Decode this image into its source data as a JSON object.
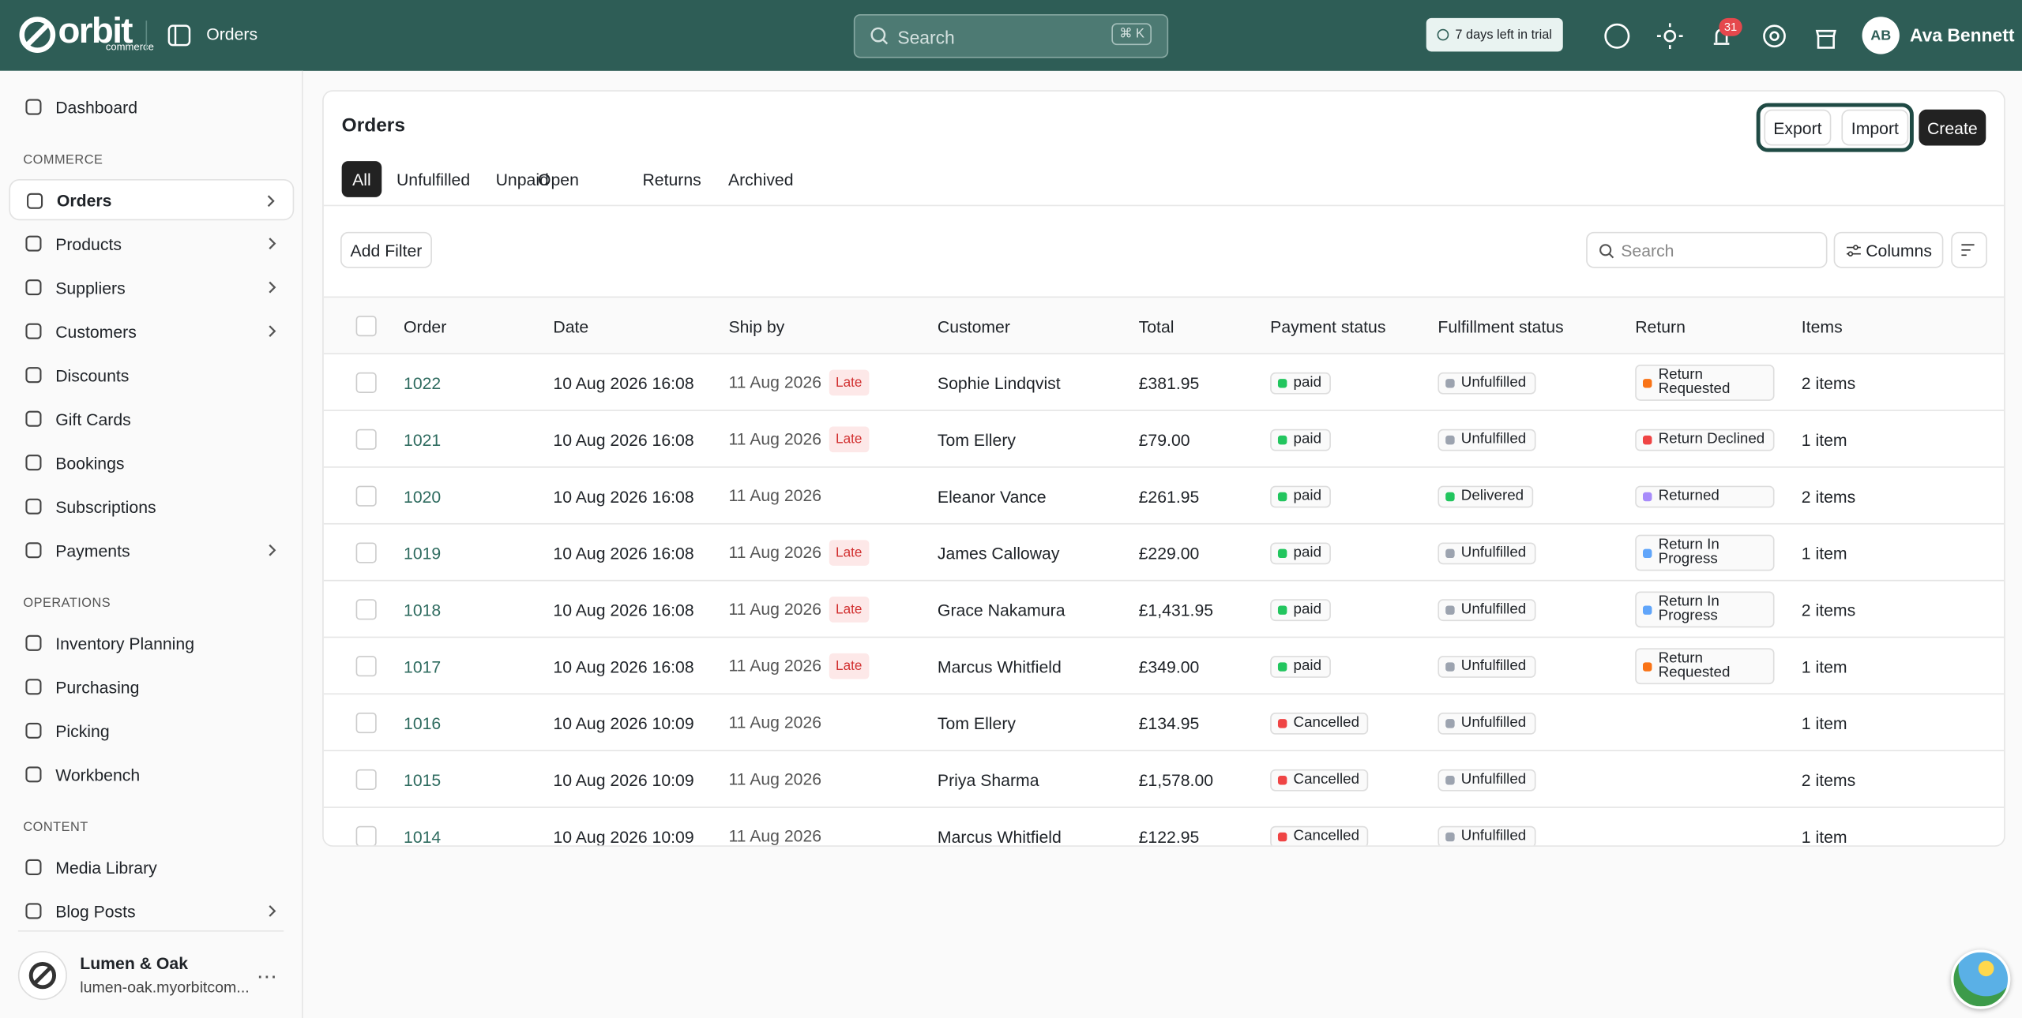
{
  "topbar": {
    "brand": "orbit",
    "brand_sub": "commerce",
    "section": "Orders",
    "search_placeholder": "Search",
    "shortcut": "⌘ K",
    "trial": "7 days left in trial",
    "notifications": "31",
    "user_initials": "AB",
    "user_name": "Ava Bennett"
  },
  "sidebar": {
    "groups": [
      {
        "items": [
          {
            "label": "Dashboard"
          }
        ]
      },
      {
        "title": "COMMERCE",
        "items": [
          {
            "label": "Orders",
            "chevron": true,
            "active": true
          },
          {
            "label": "Products",
            "chevron": true
          },
          {
            "label": "Suppliers",
            "chevron": true
          },
          {
            "label": "Customers",
            "chevron": true
          },
          {
            "label": "Discounts"
          },
          {
            "label": "Gift Cards"
          },
          {
            "label": "Bookings"
          },
          {
            "label": "Subscriptions"
          },
          {
            "label": "Payments",
            "chevron": true
          }
        ]
      },
      {
        "title": "OPERATIONS",
        "items": [
          {
            "label": "Inventory Planning"
          },
          {
            "label": "Purchasing"
          },
          {
            "label": "Picking"
          },
          {
            "label": "Workbench"
          }
        ]
      },
      {
        "title": "CONTENT",
        "items": [
          {
            "label": "Media Library"
          },
          {
            "label": "Blog Posts",
            "chevron": true
          }
        ]
      }
    ],
    "store": {
      "name": "Lumen & Oak",
      "domain": "lumen-oak.myorbitcom..."
    }
  },
  "page": {
    "title": "Orders",
    "actions": [
      "Export",
      "Import",
      "Create"
    ],
    "tabs": [
      "All",
      "Unfulfilled",
      "Unpaid",
      "Open",
      "Returns",
      "Archived"
    ],
    "add_filter": "Add Filter",
    "search_placeholder": "Search",
    "columns_button": "Columns"
  },
  "table": {
    "columns": [
      "Order",
      "Date",
      "Ship by",
      "Customer",
      "Total",
      "Payment status",
      "Fulfillment status",
      "Return",
      "Items"
    ],
    "rows": [
      {
        "order": "1022",
        "date": "10 Aug 2026 16:08",
        "ship_by": "11 Aug 2026",
        "late": "Late",
        "customer": "Sophie Lindqvist",
        "total": "£381.95",
        "payment": {
          "label": "paid",
          "color": "#22c55e"
        },
        "fulfillment": {
          "label": "Unfulfilled",
          "color": "#9ca3af"
        },
        "return": {
          "label": "Return Requested",
          "color": "#f97316"
        },
        "items": "2 items"
      },
      {
        "order": "1021",
        "date": "10 Aug 2026 16:08",
        "ship_by": "11 Aug 2026",
        "late": "Late",
        "customer": "Tom Ellery",
        "total": "£79.00",
        "payment": {
          "label": "paid",
          "color": "#22c55e"
        },
        "fulfillment": {
          "label": "Unfulfilled",
          "color": "#9ca3af"
        },
        "return": {
          "label": "Return Declined",
          "color": "#ef4444"
        },
        "items": "1 item"
      },
      {
        "order": "1020",
        "date": "10 Aug 2026 16:08",
        "ship_by": "11 Aug 2026",
        "customer": "Eleanor Vance",
        "total": "£261.95",
        "payment": {
          "label": "paid",
          "color": "#22c55e"
        },
        "fulfillment": {
          "label": "Delivered",
          "color": "#22c55e"
        },
        "return": {
          "label": "Returned",
          "color": "#a78bfa"
        },
        "items": "2 items"
      },
      {
        "order": "1019",
        "date": "10 Aug 2026 16:08",
        "ship_by": "11 Aug 2026",
        "late": "Late",
        "customer": "James Calloway",
        "total": "£229.00",
        "payment": {
          "label": "paid",
          "color": "#22c55e"
        },
        "fulfillment": {
          "label": "Unfulfilled",
          "color": "#9ca3af"
        },
        "return": {
          "label": "Return In Progress",
          "color": "#60a5fa"
        },
        "items": "1 item"
      },
      {
        "order": "1018",
        "date": "10 Aug 2026 16:08",
        "ship_by": "11 Aug 2026",
        "late": "Late",
        "customer": "Grace Nakamura",
        "total": "£1,431.95",
        "payment": {
          "label": "paid",
          "color": "#22c55e"
        },
        "fulfillment": {
          "label": "Unfulfilled",
          "color": "#9ca3af"
        },
        "return": {
          "label": "Return In Progress",
          "color": "#60a5fa"
        },
        "items": "2 items"
      },
      {
        "order": "1017",
        "date": "10 Aug 2026 16:08",
        "ship_by": "11 Aug 2026",
        "late": "Late",
        "customer": "Marcus Whitfield",
        "total": "£349.00",
        "payment": {
          "label": "paid",
          "color": "#22c55e"
        },
        "fulfillment": {
          "label": "Unfulfilled",
          "color": "#9ca3af"
        },
        "return": {
          "label": "Return Requested",
          "color": "#f97316"
        },
        "items": "1 item"
      },
      {
        "order": "1016",
        "date": "10 Aug 2026 10:09",
        "ship_by": "11 Aug 2026",
        "customer": "Tom Ellery",
        "total": "£134.95",
        "payment": {
          "label": "Cancelled",
          "color": "#ef4444"
        },
        "fulfillment": {
          "label": "Unfulfilled",
          "color": "#9ca3af"
        },
        "items": "1 item"
      },
      {
        "order": "1015",
        "date": "10 Aug 2026 10:09",
        "ship_by": "11 Aug 2026",
        "customer": "Priya Sharma",
        "total": "£1,578.00",
        "payment": {
          "label": "Cancelled",
          "color": "#ef4444"
        },
        "fulfillment": {
          "label": "Unfulfilled",
          "color": "#9ca3af"
        },
        "items": "2 items"
      },
      {
        "order": "1014",
        "date": "10 Aug 2026 10:09",
        "ship_by": "11 Aug 2026",
        "customer": "Marcus Whitfield",
        "total": "£122.95",
        "payment": {
          "label": "Cancelled",
          "color": "#ef4444"
        },
        "fulfillment": {
          "label": "Unfulfilled",
          "color": "#9ca3af"
        },
        "items": "1 item"
      }
    ]
  }
}
